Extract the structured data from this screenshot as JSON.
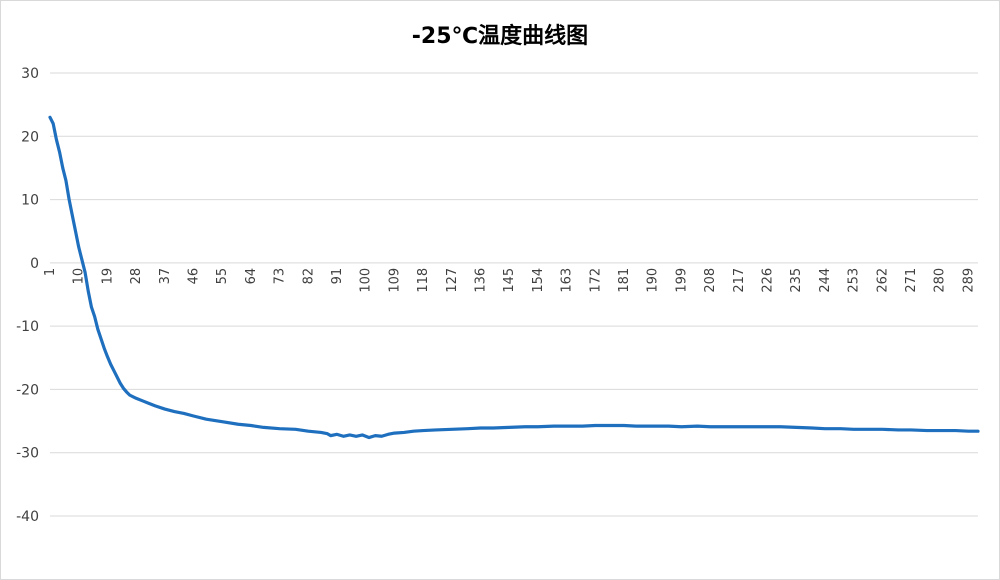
{
  "chart_data": {
    "type": "line",
    "title": "-25℃温度曲线图",
    "xlabel": "",
    "ylabel": "",
    "ylim": [
      -40,
      30
    ],
    "yticks": [
      30,
      20,
      10,
      0,
      -10,
      -20,
      -30,
      -40
    ],
    "grid": true,
    "legend": "none",
    "x_start": 1,
    "x_end": 292,
    "x_tick_labels": [
      "1",
      "10",
      "19",
      "28",
      "37",
      "46",
      "55",
      "64",
      "73",
      "82",
      "91",
      "100",
      "109",
      "118",
      "127",
      "136",
      "145",
      "154",
      "163",
      "172",
      "181",
      "190",
      "199",
      "208",
      "217",
      "226",
      "235",
      "244",
      "253",
      "262",
      "271",
      "280",
      "289"
    ],
    "series": [
      {
        "color": "#1f6fbf",
        "points": [
          [
            1,
            23.0
          ],
          [
            2,
            22.0
          ],
          [
            3,
            19.5
          ],
          [
            4,
            17.5
          ],
          [
            5,
            15.0
          ],
          [
            6,
            13.0
          ],
          [
            7,
            10.0
          ],
          [
            8,
            7.5
          ],
          [
            9,
            5.0
          ],
          [
            10,
            2.5
          ],
          [
            11,
            0.5
          ],
          [
            12,
            -1.5
          ],
          [
            13,
            -4.5
          ],
          [
            14,
            -7.0
          ],
          [
            15,
            -8.5
          ],
          [
            16,
            -10.5
          ],
          [
            17,
            -12.0
          ],
          [
            18,
            -13.5
          ],
          [
            19,
            -14.8
          ],
          [
            20,
            -16.0
          ],
          [
            21,
            -17.0
          ],
          [
            22,
            -18.0
          ],
          [
            23,
            -19.0
          ],
          [
            24,
            -19.8
          ],
          [
            25,
            -20.4
          ],
          [
            26,
            -20.9
          ],
          [
            28,
            -21.4
          ],
          [
            30,
            -21.8
          ],
          [
            32,
            -22.2
          ],
          [
            34,
            -22.6
          ],
          [
            37,
            -23.1
          ],
          [
            40,
            -23.5
          ],
          [
            43,
            -23.8
          ],
          [
            46,
            -24.2
          ],
          [
            50,
            -24.7
          ],
          [
            55,
            -25.1
          ],
          [
            60,
            -25.5
          ],
          [
            64,
            -25.7
          ],
          [
            68,
            -26.0
          ],
          [
            73,
            -26.2
          ],
          [
            78,
            -26.3
          ],
          [
            82,
            -26.6
          ],
          [
            86,
            -26.8
          ],
          [
            88,
            -27.0
          ],
          [
            89,
            -27.3
          ],
          [
            91,
            -27.1
          ],
          [
            93,
            -27.4
          ],
          [
            95,
            -27.2
          ],
          [
            97,
            -27.4
          ],
          [
            99,
            -27.2
          ],
          [
            101,
            -27.6
          ],
          [
            103,
            -27.3
          ],
          [
            105,
            -27.4
          ],
          [
            107,
            -27.1
          ],
          [
            109,
            -26.9
          ],
          [
            112,
            -26.8
          ],
          [
            115,
            -26.6
          ],
          [
            118,
            -26.5
          ],
          [
            122,
            -26.4
          ],
          [
            127,
            -26.3
          ],
          [
            132,
            -26.2
          ],
          [
            136,
            -26.1
          ],
          [
            140,
            -26.1
          ],
          [
            145,
            -26.0
          ],
          [
            150,
            -25.9
          ],
          [
            154,
            -25.9
          ],
          [
            159,
            -25.8
          ],
          [
            163,
            -25.8
          ],
          [
            168,
            -25.8
          ],
          [
            172,
            -25.7
          ],
          [
            176,
            -25.7
          ],
          [
            181,
            -25.7
          ],
          [
            185,
            -25.8
          ],
          [
            190,
            -25.8
          ],
          [
            195,
            -25.8
          ],
          [
            199,
            -25.9
          ],
          [
            204,
            -25.8
          ],
          [
            208,
            -25.9
          ],
          [
            213,
            -25.9
          ],
          [
            217,
            -25.9
          ],
          [
            222,
            -25.9
          ],
          [
            226,
            -25.9
          ],
          [
            230,
            -25.9
          ],
          [
            235,
            -26.0
          ],
          [
            240,
            -26.1
          ],
          [
            244,
            -26.2
          ],
          [
            249,
            -26.2
          ],
          [
            253,
            -26.3
          ],
          [
            258,
            -26.3
          ],
          [
            262,
            -26.3
          ],
          [
            267,
            -26.4
          ],
          [
            271,
            -26.4
          ],
          [
            276,
            -26.5
          ],
          [
            280,
            -26.5
          ],
          [
            285,
            -26.5
          ],
          [
            289,
            -26.6
          ],
          [
            292,
            -26.6
          ]
        ]
      }
    ]
  }
}
